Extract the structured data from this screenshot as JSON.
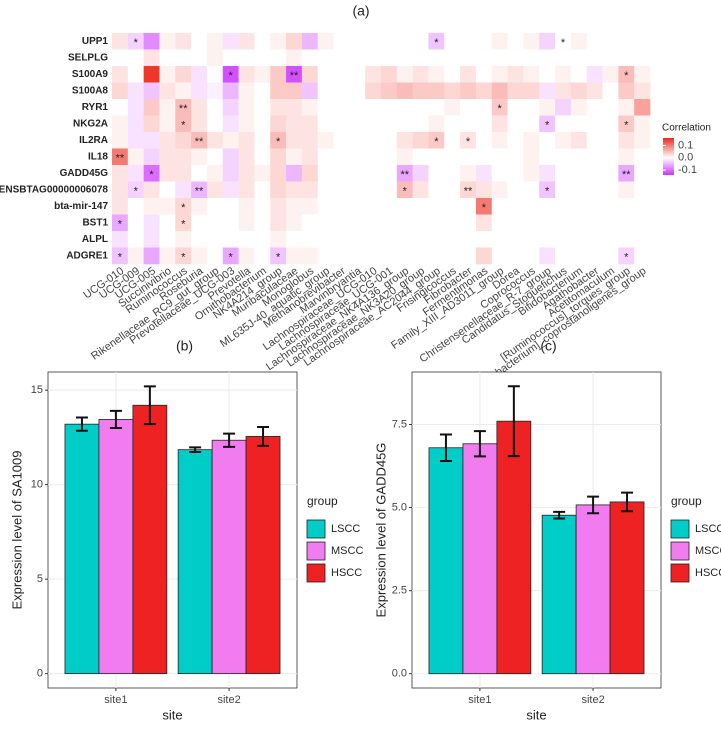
{
  "chart_data": [
    {
      "type": "heatmap",
      "panel": "(a)",
      "rows": [
        "UPP1",
        "SELPLG",
        "S100A9",
        "S100A8",
        "RYR1",
        "NKG2A",
        "IL2RA",
        "IL18",
        "GADD45G",
        "ENSBTAG00000006078",
        "bta-mir-147",
        "BST1",
        "ALPL",
        "ADGRE1"
      ],
      "columns": [
        "UCG-010",
        "UCG-009",
        "UCG-005",
        "Succinivibrio",
        "Ruminococcus",
        "Roseburia",
        "Rikenellaceae_RC9_gut_group",
        "Prevotellaceae_UCG-003",
        "Prevotella",
        "Ornithobacterium",
        "NK4A214_group",
        "Muribaculaceae",
        "Monoglobus",
        "ML635J-40_aquatic_group",
        "Methanobrevibacter",
        "Marvinbryantia",
        "Lachnospiraceae_UCG-010",
        "Lachnospiraceae_UCG-001",
        "Lachnospiraceae_NK4A136_group",
        "Lachnospiraceae_NK3A20_group",
        "Lachnospiraceae_AC2044_group",
        "Frisingicoccus",
        "Fibrobacter",
        "Fermentimonas",
        "Family_XIII_AD3011_group",
        "Dorea",
        "Coprococcus",
        "Christensenellaceae_R-7_group",
        "Candidatus_Stoquefichus",
        "Bifidobacterium",
        "Agathobacter",
        "Acetitomaculum",
        "[Ruminococcus]_torques_group",
        "[Eubacterium]_coprostanoligenes_group"
      ],
      "values": [
        [
          0.02,
          -0.03,
          -0.08,
          0.01,
          0.02,
          0,
          0.01,
          -0.02,
          0.02,
          0,
          0.01,
          0.03,
          -0.05,
          0.01,
          0,
          0,
          0,
          0,
          0,
          0,
          -0.04,
          0,
          0,
          0,
          0.01,
          0,
          0.01,
          -0.03,
          0,
          0.01,
          0,
          0,
          0,
          0
        ],
        [
          0,
          0,
          0.02,
          0,
          0,
          0,
          0.01,
          0,
          0,
          0,
          0,
          0.01,
          0,
          0,
          0,
          0,
          0,
          0,
          0,
          0,
          0,
          0,
          0,
          0,
          0,
          0,
          0,
          0,
          0,
          0,
          0,
          0,
          0,
          0
        ],
        [
          0.02,
          0,
          0.15,
          0.01,
          0.03,
          -0.02,
          0,
          -0.12,
          0.02,
          0.01,
          0.04,
          -0.12,
          0.03,
          0,
          0,
          0,
          0.02,
          0.03,
          0.01,
          0.02,
          0.01,
          0,
          0.02,
          0,
          0.01,
          0.02,
          0.01,
          0,
          0.01,
          0,
          -0.02,
          0.01,
          0.05,
          0.01
        ],
        [
          0.03,
          -0.02,
          -0.04,
          0.02,
          0.01,
          -0.02,
          -0.01,
          -0.05,
          0.01,
          0,
          0.04,
          0.04,
          -0.04,
          0,
          0,
          0,
          0.03,
          0.04,
          0.05,
          0.04,
          0.04,
          0.03,
          0.04,
          0.03,
          0.05,
          0.03,
          0.03,
          -0.02,
          0.02,
          0.03,
          0.02,
          0,
          0.04,
          0.02
        ],
        [
          0,
          -0.02,
          0.04,
          0.01,
          0.05,
          0.02,
          0,
          -0.03,
          0.01,
          0,
          0.02,
          0.02,
          0.01,
          0,
          0,
          0,
          0,
          0,
          0,
          0,
          0,
          0.01,
          0,
          0,
          0.04,
          0,
          0,
          0.01,
          -0.03,
          0.01,
          0,
          0,
          0.01,
          0.07
        ],
        [
          0.01,
          -0.02,
          0.03,
          0.01,
          0.05,
          0.02,
          0,
          -0.02,
          0.01,
          0,
          0.03,
          0.02,
          0.02,
          0,
          0,
          0,
          0,
          0,
          0,
          0,
          0.01,
          0,
          0,
          0,
          0.02,
          0,
          0,
          -0.04,
          0,
          0,
          0,
          0,
          0.04,
          0.01
        ],
        [
          0.01,
          -0.02,
          -0.02,
          0.02,
          0.03,
          0.05,
          0.02,
          0.01,
          0.02,
          0,
          0.05,
          0.02,
          0.02,
          0.01,
          0,
          0,
          0,
          0,
          0.02,
          0.03,
          0.04,
          0,
          0.02,
          0,
          0.01,
          0,
          0.01,
          0,
          0.01,
          0.02,
          0,
          0,
          0.02,
          0.01
        ],
        [
          0.1,
          0.01,
          -0.03,
          0.02,
          0.02,
          0.01,
          0,
          -0.03,
          0.02,
          0,
          0.03,
          0.01,
          0.02,
          0,
          0,
          0,
          0,
          0,
          0.01,
          0,
          0,
          0,
          0,
          0,
          0,
          0,
          0.01,
          0,
          0,
          0,
          0,
          0,
          0.01,
          0
        ],
        [
          0.02,
          -0.02,
          -0.1,
          0.02,
          0.02,
          0,
          0.01,
          -0.03,
          0.02,
          0.01,
          0.03,
          -0.05,
          0.03,
          0,
          0,
          0,
          0,
          0,
          -0.06,
          -0.03,
          0,
          0,
          0.01,
          -0.02,
          0,
          0,
          0.01,
          -0.02,
          0,
          0,
          0,
          0,
          -0.06,
          0
        ],
        [
          0.02,
          -0.03,
          0.02,
          0,
          -0.02,
          -0.05,
          0.02,
          -0.02,
          0.02,
          0,
          0.03,
          0.02,
          0.02,
          0,
          0,
          0,
          0,
          0,
          0.05,
          0.02,
          0,
          0,
          0.03,
          0.02,
          0.01,
          0,
          0,
          -0.04,
          0,
          0,
          0,
          0,
          0.01,
          0
        ],
        [
          0.02,
          0,
          0.01,
          0.01,
          0.03,
          0.01,
          0,
          0,
          0.01,
          0,
          0.02,
          0.01,
          0.01,
          0,
          0,
          0,
          0,
          0,
          0,
          0,
          0,
          0,
          0,
          0.1,
          0,
          0,
          0,
          0,
          0,
          0,
          0,
          0,
          0,
          0
        ],
        [
          -0.06,
          0,
          -0.02,
          0,
          0.03,
          0,
          0,
          0,
          0.01,
          0,
          0.02,
          0.01,
          0,
          0,
          0,
          0,
          0,
          0,
          0,
          0,
          0,
          0,
          0,
          0.02,
          0,
          0,
          0,
          0,
          0,
          0,
          0,
          0,
          0,
          0
        ],
        [
          -0.02,
          0,
          -0.02,
          0,
          0.01,
          0,
          0,
          0,
          0,
          0,
          0.01,
          0,
          0,
          0,
          0,
          0,
          0,
          0,
          0,
          0,
          0,
          0,
          0,
          0,
          0,
          0,
          0,
          0,
          0,
          0,
          0,
          0,
          0,
          0
        ],
        [
          -0.04,
          0.01,
          -0.06,
          0.01,
          0.03,
          0.01,
          0,
          -0.06,
          0.01,
          0,
          -0.04,
          0.01,
          0.01,
          0,
          0,
          0,
          0,
          0,
          0,
          0,
          0,
          0,
          0,
          0.03,
          0,
          0,
          0,
          -0.02,
          0,
          0,
          0,
          0,
          -0.03,
          0
        ]
      ],
      "annotations": [
        {
          "row": 0,
          "col": 1,
          "label": "*"
        },
        {
          "row": 0,
          "col": 20,
          "label": "*"
        },
        {
          "row": 0,
          "col": 28,
          "label": "*"
        },
        {
          "row": 2,
          "col": 7,
          "label": "*"
        },
        {
          "row": 2,
          "col": 11,
          "label": "**"
        },
        {
          "row": 2,
          "col": 32,
          "label": "*"
        },
        {
          "row": 4,
          "col": 4,
          "label": "**"
        },
        {
          "row": 4,
          "col": 24,
          "label": "*"
        },
        {
          "row": 5,
          "col": 4,
          "label": "*"
        },
        {
          "row": 5,
          "col": 27,
          "label": "*"
        },
        {
          "row": 5,
          "col": 32,
          "label": "*"
        },
        {
          "row": 6,
          "col": 5,
          "label": "**"
        },
        {
          "row": 6,
          "col": 10,
          "label": "*"
        },
        {
          "row": 6,
          "col": 20,
          "label": "*"
        },
        {
          "row": 6,
          "col": 22,
          "label": "*"
        },
        {
          "row": 7,
          "col": 0,
          "label": "**"
        },
        {
          "row": 8,
          "col": 2,
          "label": "*"
        },
        {
          "row": 8,
          "col": 18,
          "label": "**"
        },
        {
          "row": 8,
          "col": 32,
          "label": "**"
        },
        {
          "row": 9,
          "col": 1,
          "label": "*"
        },
        {
          "row": 9,
          "col": 5,
          "label": "**"
        },
        {
          "row": 9,
          "col": 18,
          "label": "*"
        },
        {
          "row": 9,
          "col": 22,
          "label": "**"
        },
        {
          "row": 9,
          "col": 27,
          "label": "*"
        },
        {
          "row": 10,
          "col": 4,
          "label": "*"
        },
        {
          "row": 10,
          "col": 23,
          "label": "*"
        },
        {
          "row": 11,
          "col": 0,
          "label": "*"
        },
        {
          "row": 11,
          "col": 4,
          "label": "*"
        },
        {
          "row": 13,
          "col": 0,
          "label": "*"
        },
        {
          "row": 13,
          "col": 4,
          "label": "*"
        },
        {
          "row": 13,
          "col": 7,
          "label": "*"
        },
        {
          "row": 13,
          "col": 10,
          "label": "*"
        },
        {
          "row": 13,
          "col": 32,
          "label": "*"
        }
      ],
      "legend_title": "Correlation",
      "clim": [
        -0.14,
        0.16
      ],
      "cticks": [
        0.1,
        {
          "value": 0,
          "label": "0.0"
        },
        -0.1
      ],
      "colors": {
        "low": "#cc33ff",
        "mid": "#ffffff",
        "high": "#ee2a1b"
      }
    },
    {
      "type": "bar",
      "panel": "(b)",
      "ylabel": "Expression level of SA1009",
      "xlabel": "site",
      "categories": [
        "site1",
        "site2"
      ],
      "legend_title": "group",
      "series": [
        {
          "name": "LSCC",
          "color": "#00cdc8",
          "values": [
            13.2,
            11.85
          ],
          "errors": [
            0.35,
            0.12
          ]
        },
        {
          "name": "MSCC",
          "color": "#f07cf0",
          "values": [
            13.45,
            12.35
          ],
          "errors": [
            0.45,
            0.35
          ]
        },
        {
          "name": "HSCC",
          "color": "#ee2222",
          "values": [
            14.2,
            12.55
          ],
          "errors": [
            1.0,
            0.5
          ]
        }
      ],
      "ylim": [
        -0.76,
        15.96
      ],
      "yticks": [
        0,
        5,
        10,
        15
      ],
      "grid": true
    },
    {
      "type": "bar",
      "panel": "(c)",
      "ylabel": "Expression level of GADD45G",
      "xlabel": "site",
      "categories": [
        "site1",
        "site2"
      ],
      "legend_title": "group",
      "series": [
        {
          "name": "LSCC",
          "color": "#00cdc8",
          "values": [
            6.8,
            4.77
          ],
          "errors": [
            0.4,
            0.1
          ]
        },
        {
          "name": "MSCC",
          "color": "#f07cf0",
          "values": [
            6.92,
            5.08
          ],
          "errors": [
            0.38,
            0.25
          ]
        },
        {
          "name": "HSCC",
          "color": "#ee2222",
          "values": [
            7.6,
            5.17
          ],
          "errors": [
            1.05,
            0.28
          ]
        }
      ],
      "ylim": [
        -0.43,
        9.08
      ],
      "yticks": [
        {
          "value": 0,
          "label": "0.0"
        },
        2.5,
        {
          "value": 5,
          "label": "5.0"
        },
        7.5
      ],
      "grid": true
    }
  ]
}
